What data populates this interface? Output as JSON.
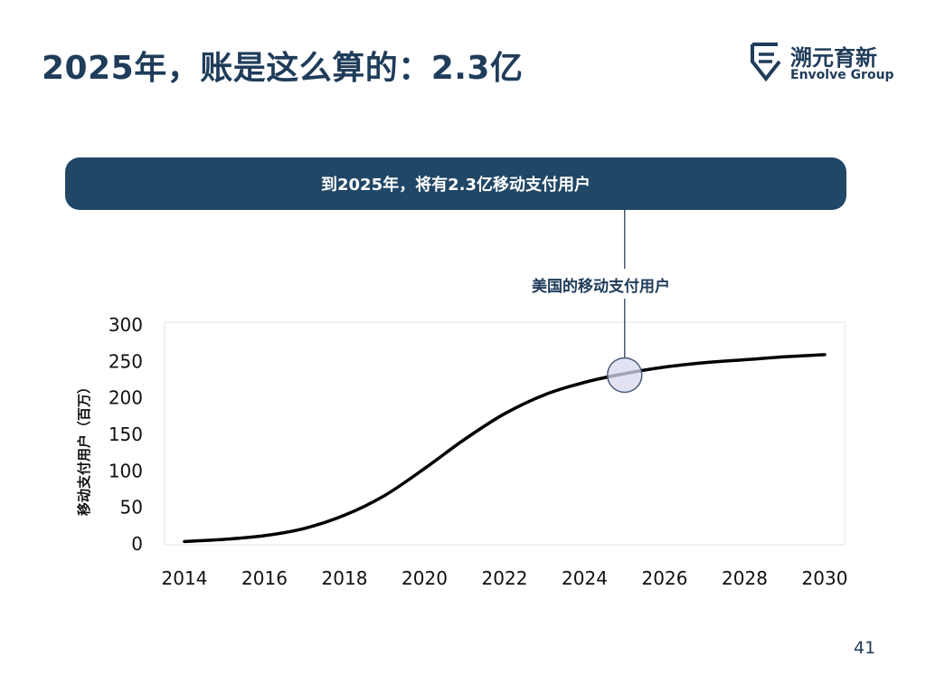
{
  "slide": {
    "title": "2025年，账是这么算的：2.3亿",
    "page_number": "41"
  },
  "logo": {
    "name_cn": "溯元育新",
    "name_en": "Envolve Group"
  },
  "banner": {
    "text": "到2025年，将有2.3亿移动支付用户"
  },
  "callout": {
    "label": "美国的移动支付用户",
    "x": 2025,
    "y": 230
  },
  "colors": {
    "title": "#1f3c5a",
    "banner_bg": "#214766",
    "line": "#000000",
    "callout_fill": "#d7d9ef",
    "callout_stroke": "#4a5a78"
  },
  "chart_data": {
    "type": "line",
    "title": "",
    "xlabel": "",
    "ylabel": "移动支付用户（百万）",
    "xlim": [
      2014,
      2030
    ],
    "ylim": [
      0,
      300
    ],
    "x_ticks": [
      "2014",
      "2016",
      "2018",
      "2020",
      "2022",
      "2024",
      "2026",
      "2028",
      "2030"
    ],
    "y_ticks": [
      "0",
      "50",
      "100",
      "150",
      "200",
      "250",
      "300"
    ],
    "grid": false,
    "legend": "none",
    "series": [
      {
        "x": [
          2014,
          2015,
          2016,
          2017,
          2018,
          2019,
          2020,
          2021,
          2022,
          2023,
          2024,
          2025,
          2026,
          2027,
          2028,
          2029,
          2030
        ],
        "values": [
          2,
          5,
          10,
          20,
          38,
          65,
          102,
          142,
          177,
          203,
          220,
          232,
          241,
          247,
          251,
          255,
          258
        ]
      }
    ]
  }
}
